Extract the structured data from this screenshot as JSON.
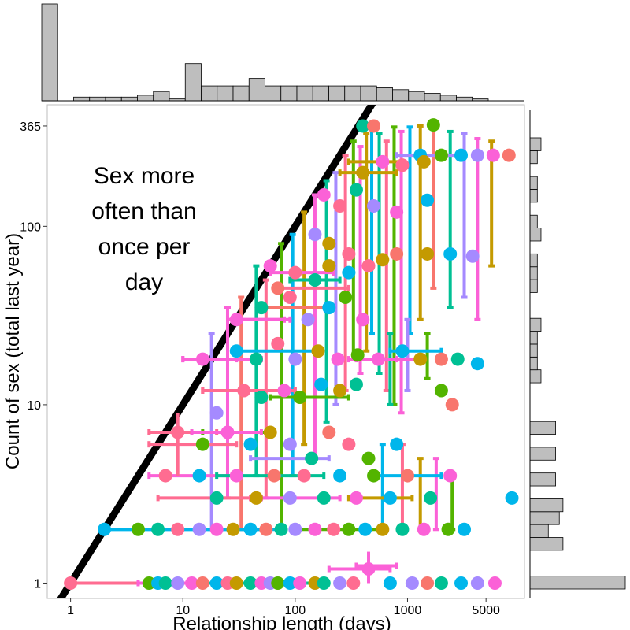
{
  "chart_data": {
    "type": "scatter",
    "title": "",
    "xlabel": "Relationship length (days)",
    "ylabel": "Count of sex (total last year)",
    "xscale": "log",
    "yscale": "log",
    "xlim": [
      0.62,
      11000
    ],
    "ylim": [
      0.82,
      480
    ],
    "x_ticks": [
      {
        "value": 1,
        "label": "1"
      },
      {
        "value": 10,
        "label": "10"
      },
      {
        "value": 100,
        "label": "100"
      },
      {
        "value": 1000,
        "label": "1000"
      },
      {
        "value": 5000,
        "label": "5000"
      }
    ],
    "y_ticks": [
      {
        "value": 1,
        "label": "1"
      },
      {
        "value": 10,
        "label": "10"
      },
      {
        "value": 100,
        "label": "100"
      },
      {
        "value": 365,
        "label": "365"
      }
    ],
    "annotation": [
      "Sex more",
      "often than",
      "once per",
      "day"
    ],
    "reference_line": {
      "label": "once per day",
      "slope": 1,
      "intercept": 0
    },
    "palette": [
      "#F8766D",
      "#C49A00",
      "#53B400",
      "#00C094",
      "#00B6EB",
      "#A58AFF",
      "#FB61D7",
      "#FF6C91"
    ],
    "points": [
      {
        "x": 1,
        "y": 1,
        "c": 7,
        "xlo": 1,
        "xhi": 20
      },
      {
        "x": 5,
        "y": 1,
        "c": 2
      },
      {
        "x": 6,
        "y": 1,
        "c": 4
      },
      {
        "x": 7,
        "y": 1,
        "c": 3
      },
      {
        "x": 9,
        "y": 1,
        "c": 5
      },
      {
        "x": 12,
        "y": 1,
        "c": 6,
        "xlo": 4,
        "xhi": 25
      },
      {
        "x": 15,
        "y": 1,
        "c": 0
      },
      {
        "x": 20,
        "y": 1,
        "c": 4
      },
      {
        "x": 25,
        "y": 1,
        "c": 7
      },
      {
        "x": 30,
        "y": 1,
        "c": 1
      },
      {
        "x": 40,
        "y": 1,
        "c": 3,
        "xlo": 15,
        "xhi": 80
      },
      {
        "x": 50,
        "y": 1,
        "c": 6
      },
      {
        "x": 60,
        "y": 1,
        "c": 5
      },
      {
        "x": 70,
        "y": 1,
        "c": 2
      },
      {
        "x": 90,
        "y": 1,
        "c": 4
      },
      {
        "x": 110,
        "y": 1,
        "c": 6
      },
      {
        "x": 150,
        "y": 1,
        "c": 1
      },
      {
        "x": 180,
        "y": 1,
        "c": 3
      },
      {
        "x": 250,
        "y": 1,
        "c": 5
      },
      {
        "x": 330,
        "y": 1,
        "c": 7
      },
      {
        "x": 450,
        "y": 1.2,
        "c": 6,
        "xlo": 200,
        "xhi": 700,
        "ylo": 1,
        "yhi": 1.5
      },
      {
        "x": 700,
        "y": 1,
        "c": 4
      },
      {
        "x": 1100,
        "y": 1,
        "c": 5
      },
      {
        "x": 1500,
        "y": 1,
        "c": 0
      },
      {
        "x": 2000,
        "y": 1,
        "c": 3
      },
      {
        "x": 3000,
        "y": 1,
        "c": 4
      },
      {
        "x": 4200,
        "y": 1,
        "c": 5
      },
      {
        "x": 6000,
        "y": 1,
        "c": 6
      },
      {
        "x": 2,
        "y": 2,
        "c": 4,
        "xlo": 2,
        "xhi": 60
      },
      {
        "x": 4,
        "y": 2,
        "c": 2
      },
      {
        "x": 6,
        "y": 2,
        "c": 3
      },
      {
        "x": 9,
        "y": 2,
        "c": 7
      },
      {
        "x": 14,
        "y": 2,
        "c": 5
      },
      {
        "x": 20,
        "y": 2,
        "c": 6
      },
      {
        "x": 28,
        "y": 2,
        "c": 1
      },
      {
        "x": 40,
        "y": 2,
        "c": 4
      },
      {
        "x": 55,
        "y": 2,
        "c": 0
      },
      {
        "x": 75,
        "y": 2,
        "c": 3
      },
      {
        "x": 100,
        "y": 2,
        "c": 5
      },
      {
        "x": 150,
        "y": 2,
        "c": 6
      },
      {
        "x": 220,
        "y": 2,
        "c": 7
      },
      {
        "x": 300,
        "y": 2,
        "c": 2
      },
      {
        "x": 420,
        "y": 2,
        "c": 4
      },
      {
        "x": 600,
        "y": 2,
        "c": 1
      },
      {
        "x": 900,
        "y": 2,
        "c": 3
      },
      {
        "x": 1400,
        "y": 2,
        "c": 6
      },
      {
        "x": 2300,
        "y": 2,
        "c": 2
      },
      {
        "x": 3200,
        "y": 2,
        "c": 4
      },
      {
        "x": 7,
        "y": 4,
        "c": 7
      },
      {
        "x": 14,
        "y": 4,
        "c": 4
      },
      {
        "x": 20,
        "y": 3,
        "c": 3
      },
      {
        "x": 30,
        "y": 4,
        "c": 6
      },
      {
        "x": 45,
        "y": 3,
        "c": 1
      },
      {
        "x": 65,
        "y": 4,
        "c": 0
      },
      {
        "x": 90,
        "y": 3,
        "c": 5
      },
      {
        "x": 120,
        "y": 4,
        "c": 7
      },
      {
        "x": 180,
        "y": 3,
        "c": 3
      },
      {
        "x": 250,
        "y": 4,
        "c": 4
      },
      {
        "x": 350,
        "y": 3,
        "c": 6
      },
      {
        "x": 500,
        "y": 4,
        "c": 2
      },
      {
        "x": 700,
        "y": 3,
        "c": 4
      },
      {
        "x": 1000,
        "y": 4,
        "c": 0
      },
      {
        "x": 1600,
        "y": 3,
        "c": 3
      },
      {
        "x": 2400,
        "y": 4,
        "c": 6
      },
      {
        "x": 8500,
        "y": 3,
        "c": 4
      },
      {
        "x": 9,
        "y": 7,
        "c": 7,
        "xlo": 5,
        "xhi": 20,
        "ylo": 4,
        "yhi": 9
      },
      {
        "x": 15,
        "y": 6,
        "c": 2
      },
      {
        "x": 25,
        "y": 7,
        "c": 6,
        "xlo": 12,
        "xhi": 50
      },
      {
        "x": 40,
        "y": 6,
        "c": 4
      },
      {
        "x": 60,
        "y": 7,
        "c": 1
      },
      {
        "x": 90,
        "y": 6,
        "c": 5
      },
      {
        "x": 140,
        "y": 5,
        "c": 3
      },
      {
        "x": 200,
        "y": 7,
        "c": 0
      },
      {
        "x": 300,
        "y": 6,
        "c": 7
      },
      {
        "x": 450,
        "y": 5,
        "c": 2
      },
      {
        "x": 800,
        "y": 6,
        "c": 4
      },
      {
        "x": 20,
        "y": 9,
        "c": 5
      },
      {
        "x": 35,
        "y": 12,
        "c": 7,
        "xlo": 15,
        "xhi": 100
      },
      {
        "x": 50,
        "y": 11,
        "c": 3
      },
      {
        "x": 80,
        "y": 12,
        "c": 6
      },
      {
        "x": 110,
        "y": 11,
        "c": 2
      },
      {
        "x": 170,
        "y": 13,
        "c": 4
      },
      {
        "x": 250,
        "y": 12,
        "c": 1
      },
      {
        "x": 350,
        "y": 13,
        "c": 3
      },
      {
        "x": 2000,
        "y": 12,
        "c": 2
      },
      {
        "x": 2500,
        "y": 10,
        "c": 0
      },
      {
        "x": 15,
        "y": 18,
        "c": 6,
        "xlo": 10,
        "xhi": 30
      },
      {
        "x": 30,
        "y": 20,
        "c": 4
      },
      {
        "x": 45,
        "y": 18,
        "c": 3
      },
      {
        "x": 70,
        "y": 22,
        "c": 7
      },
      {
        "x": 100,
        "y": 18,
        "c": 5
      },
      {
        "x": 160,
        "y": 20,
        "c": 1
      },
      {
        "x": 240,
        "y": 18,
        "c": 6
      },
      {
        "x": 360,
        "y": 19,
        "c": 2
      },
      {
        "x": 550,
        "y": 18,
        "c": 6,
        "xlo": 300,
        "xhi": 800
      },
      {
        "x": 900,
        "y": 20,
        "c": 4
      },
      {
        "x": 1300,
        "y": 18,
        "c": 1
      },
      {
        "x": 2000,
        "y": 18,
        "c": 0
      },
      {
        "x": 2800,
        "y": 18,
        "c": 3
      },
      {
        "x": 4200,
        "y": 17,
        "c": 4
      },
      {
        "x": 30,
        "y": 30,
        "c": 6,
        "xlo": 25,
        "xhi": 80
      },
      {
        "x": 50,
        "y": 35,
        "c": 3
      },
      {
        "x": 70,
        "y": 45,
        "c": 0
      },
      {
        "x": 90,
        "y": 40,
        "c": 7
      },
      {
        "x": 130,
        "y": 30,
        "c": 5
      },
      {
        "x": 200,
        "y": 35,
        "c": 4
      },
      {
        "x": 280,
        "y": 40,
        "c": 2
      },
      {
        "x": 400,
        "y": 30,
        "c": 6
      },
      {
        "x": 60,
        "y": 60,
        "c": 6
      },
      {
        "x": 100,
        "y": 55,
        "c": 7
      },
      {
        "x": 150,
        "y": 50,
        "c": 3
      },
      {
        "x": 200,
        "y": 60,
        "c": 1
      },
      {
        "x": 300,
        "y": 55,
        "c": 4
      },
      {
        "x": 450,
        "y": 60,
        "c": 7
      },
      {
        "x": 600,
        "y": 65,
        "c": 1
      },
      {
        "x": 800,
        "y": 70,
        "c": 0
      },
      {
        "x": 150,
        "y": 90,
        "c": 5
      },
      {
        "x": 200,
        "y": 80,
        "c": 1
      },
      {
        "x": 300,
        "y": 70,
        "c": 7
      },
      {
        "x": 1500,
        "y": 70,
        "c": 1
      },
      {
        "x": 2400,
        "y": 70,
        "c": 4
      },
      {
        "x": 3800,
        "y": 68,
        "c": 5
      },
      {
        "x": 180,
        "y": 150,
        "c": 6
      },
      {
        "x": 250,
        "y": 130,
        "c": 7
      },
      {
        "x": 350,
        "y": 160,
        "c": 3
      },
      {
        "x": 500,
        "y": 130,
        "c": 5
      },
      {
        "x": 800,
        "y": 120,
        "c": 6
      },
      {
        "x": 1500,
        "y": 140,
        "c": 4
      },
      {
        "x": 400,
        "y": 200,
        "c": 1,
        "xlo": 250,
        "xhi": 800
      },
      {
        "x": 600,
        "y": 230,
        "c": 6
      },
      {
        "x": 900,
        "y": 220,
        "c": 7
      },
      {
        "x": 1300,
        "y": 250,
        "c": 4
      },
      {
        "x": 1400,
        "y": 230,
        "c": 1
      },
      {
        "x": 2000,
        "y": 250,
        "c": 2
      },
      {
        "x": 3000,
        "y": 250,
        "c": 4
      },
      {
        "x": 4200,
        "y": 250,
        "c": 5
      },
      {
        "x": 5800,
        "y": 250,
        "c": 6
      },
      {
        "x": 8000,
        "y": 250,
        "c": 0
      },
      {
        "x": 400,
        "y": 365,
        "c": 3
      },
      {
        "x": 500,
        "y": 365,
        "c": 0
      },
      {
        "x": 1700,
        "y": 370,
        "c": 2
      }
    ],
    "vertical_bars": [
      {
        "x": 18,
        "lo": 2,
        "hi": 25,
        "c": 5
      },
      {
        "x": 25,
        "lo": 3,
        "hi": 35,
        "c": 6
      },
      {
        "x": 33,
        "lo": 2,
        "hi": 40,
        "c": 0
      },
      {
        "x": 45,
        "lo": 4,
        "hi": 60,
        "c": 3
      },
      {
        "x": 55,
        "lo": 3,
        "hi": 50,
        "c": 7
      },
      {
        "x": 75,
        "lo": 2,
        "hi": 80,
        "c": 2
      },
      {
        "x": 95,
        "lo": 4,
        "hi": 90,
        "c": 4
      },
      {
        "x": 120,
        "lo": 6,
        "hi": 120,
        "c": 1
      },
      {
        "x": 150,
        "lo": 5,
        "hi": 150,
        "c": 6
      },
      {
        "x": 190,
        "lo": 8,
        "hi": 180,
        "c": 3
      },
      {
        "x": 230,
        "lo": 10,
        "hi": 200,
        "c": 5
      },
      {
        "x": 280,
        "lo": 12,
        "hi": 250,
        "c": 7
      },
      {
        "x": 330,
        "lo": 18,
        "hi": 300,
        "c": 2
      },
      {
        "x": 380,
        "lo": 15,
        "hi": 280,
        "c": 6
      },
      {
        "x": 430,
        "lo": 20,
        "hi": 330,
        "c": 1
      },
      {
        "x": 480,
        "lo": 25,
        "hi": 365,
        "c": 4
      },
      {
        "x": 560,
        "lo": 15,
        "hi": 330,
        "c": 3
      },
      {
        "x": 650,
        "lo": 12,
        "hi": 300,
        "c": 7
      },
      {
        "x": 760,
        "lo": 10,
        "hi": 360,
        "c": 2
      },
      {
        "x": 880,
        "lo": 9,
        "hi": 340,
        "c": 6
      },
      {
        "x": 1050,
        "lo": 25,
        "hi": 360,
        "c": 4
      },
      {
        "x": 1300,
        "lo": 30,
        "hi": 365,
        "c": 1
      },
      {
        "x": 1700,
        "lo": 45,
        "hi": 360,
        "c": 0
      },
      {
        "x": 2400,
        "lo": 35,
        "hi": 340,
        "c": 3
      },
      {
        "x": 3200,
        "lo": 40,
        "hi": 330,
        "c": 5
      },
      {
        "x": 4200,
        "lo": 30,
        "hi": 310,
        "c": 6
      },
      {
        "x": 5600,
        "lo": 60,
        "hi": 300,
        "c": 1
      },
      {
        "x": 600,
        "lo": 2,
        "hi": 6,
        "c": 4
      },
      {
        "x": 900,
        "lo": 2,
        "hi": 6,
        "c": 7
      },
      {
        "x": 1300,
        "lo": 2,
        "hi": 5,
        "c": 1
      },
      {
        "x": 1800,
        "lo": 2,
        "hi": 5,
        "c": 6
      },
      {
        "x": 2500,
        "lo": 2,
        "hi": 4,
        "c": 2
      },
      {
        "x": 700,
        "lo": 10,
        "hi": 25,
        "c": 3
      },
      {
        "x": 1000,
        "lo": 12,
        "hi": 30,
        "c": 5
      },
      {
        "x": 1500,
        "lo": 14,
        "hi": 25,
        "c": 2
      }
    ],
    "horizontal_bars": [
      {
        "y": 1,
        "lo": 1,
        "hi": 25,
        "c": 7
      },
      {
        "y": 1,
        "lo": 12,
        "hi": 180,
        "c": 3
      },
      {
        "y": 1.25,
        "lo": 350,
        "hi": 800,
        "c": 6
      },
      {
        "y": 2,
        "lo": 2,
        "hi": 70,
        "c": 4
      },
      {
        "y": 2,
        "lo": 100,
        "hi": 600,
        "c": 2
      },
      {
        "y": 3,
        "lo": 6,
        "hi": 40,
        "c": 7
      },
      {
        "y": 3,
        "lo": 50,
        "hi": 250,
        "c": 6
      },
      {
        "y": 4,
        "lo": 5,
        "hi": 30,
        "c": 6
      },
      {
        "y": 4,
        "lo": 20,
        "hi": 180,
        "c": 3
      },
      {
        "y": 3,
        "lo": 300,
        "hi": 1100,
        "c": 1
      },
      {
        "y": 4,
        "lo": 500,
        "hi": 2000,
        "c": 4
      },
      {
        "y": 6,
        "lo": 5,
        "hi": 30,
        "c": 7
      },
      {
        "y": 7,
        "lo": 15,
        "hi": 60,
        "c": 2
      },
      {
        "y": 5,
        "lo": 40,
        "hi": 200,
        "c": 5
      },
      {
        "y": 12,
        "lo": 15,
        "hi": 100,
        "c": 7
      },
      {
        "y": 11,
        "lo": 60,
        "hi": 300,
        "c": 2
      },
      {
        "y": 18,
        "lo": 10,
        "hi": 50,
        "c": 6
      },
      {
        "y": 20,
        "lo": 30,
        "hi": 150,
        "c": 4
      },
      {
        "y": 18,
        "lo": 350,
        "hi": 1200,
        "c": 6
      },
      {
        "y": 20,
        "lo": 700,
        "hi": 2000,
        "c": 4
      },
      {
        "y": 30,
        "lo": 25,
        "hi": 90,
        "c": 6
      },
      {
        "y": 35,
        "lo": 50,
        "hi": 200,
        "c": 0
      },
      {
        "y": 45,
        "lo": 70,
        "hi": 300,
        "c": 7
      },
      {
        "y": 50,
        "lo": 90,
        "hi": 250,
        "c": 3
      },
      {
        "y": 55,
        "lo": 60,
        "hi": 220,
        "c": 6
      },
      {
        "y": 230,
        "lo": 300,
        "hi": 900,
        "c": 1
      },
      {
        "y": 250,
        "lo": 800,
        "hi": 3000,
        "c": 5
      }
    ],
    "top_histogram": {
      "axis": "x",
      "counts": [
        52,
        0,
        2,
        2,
        2,
        2,
        3,
        5,
        1,
        20,
        8,
        8,
        8,
        12,
        8,
        8,
        8,
        8,
        8,
        8,
        8,
        7,
        6,
        5,
        4,
        3,
        2,
        1
      ],
      "range": [
        0.62,
        11000
      ]
    },
    "right_histogram": {
      "axis": "y",
      "counts": [
        26,
        0,
        0,
        9,
        5,
        8,
        9,
        0,
        7,
        0,
        7,
        0,
        7,
        0,
        0,
        0,
        3,
        2,
        2,
        2,
        3,
        0,
        0,
        2,
        2,
        2,
        0,
        3,
        2,
        0,
        2,
        2,
        0,
        2,
        3
      ],
      "range": [
        0.82,
        480
      ]
    }
  }
}
